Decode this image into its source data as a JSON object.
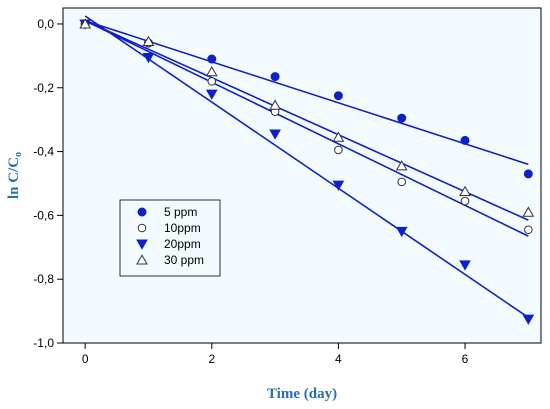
{
  "chart_data": {
    "type": "scatter",
    "xlabel": "Time (day)",
    "ylabel_main": "ln C/C",
    "ylabel_sub": "o",
    "xlim": [
      -0.35,
      7.2
    ],
    "ylim": [
      -1.0,
      0.05
    ],
    "xticks": [
      0,
      2,
      4,
      6
    ],
    "xtick_labels": [
      "0",
      "2",
      "4",
      "6"
    ],
    "yticks": [
      0.0,
      -0.2,
      -0.4,
      -0.6,
      -0.8,
      -1.0
    ],
    "ytick_labels": [
      "0,0",
      "-0,2",
      "-0,4",
      "-0,6",
      "-0,8",
      "-1,0"
    ],
    "grid": false,
    "legend_position": "lower-left",
    "plot_background": "#f3fbff",
    "axis_title_color": "#2a6fb0",
    "series": [
      {
        "name": "5 ppm",
        "marker": "filled-circle",
        "color": "#1020c8",
        "x": [
          0,
          1,
          2,
          3,
          4,
          5,
          6,
          7
        ],
        "y": [
          0.0,
          -0.06,
          -0.11,
          -0.165,
          -0.225,
          -0.295,
          -0.365,
          -0.47
        ],
        "fit": {
          "x": [
            0,
            7
          ],
          "y": [
            0.01,
            -0.44
          ]
        }
      },
      {
        "name": "10ppm",
        "marker": "open-circle",
        "color": "#1020c8",
        "x": [
          0,
          1,
          2,
          3,
          4,
          5,
          6,
          7
        ],
        "y": [
          0.0,
          -0.06,
          -0.18,
          -0.275,
          -0.395,
          -0.495,
          -0.555,
          -0.645
        ],
        "fit": {
          "x": [
            0,
            7
          ],
          "y": [
            0.01,
            -0.665
          ]
        }
      },
      {
        "name": "20ppm",
        "marker": "filled-triangle-down",
        "color": "#1020c8",
        "x": [
          0,
          1,
          2,
          3,
          4,
          5,
          6,
          7
        ],
        "y": [
          0.0,
          -0.105,
          -0.22,
          -0.345,
          -0.505,
          -0.65,
          -0.755,
          -0.925
        ],
        "fit": {
          "x": [
            0,
            7
          ],
          "y": [
            0.025,
            -0.92
          ]
        }
      },
      {
        "name": "30 ppm",
        "marker": "open-triangle-up",
        "color": "#1020c8",
        "x": [
          0,
          1,
          2,
          3,
          4,
          5,
          6,
          7
        ],
        "y": [
          0.0,
          -0.055,
          -0.15,
          -0.255,
          -0.355,
          -0.445,
          -0.525,
          -0.59
        ],
        "fit": {
          "x": [
            0,
            7
          ],
          "y": [
            0.01,
            -0.615
          ]
        }
      }
    ]
  }
}
